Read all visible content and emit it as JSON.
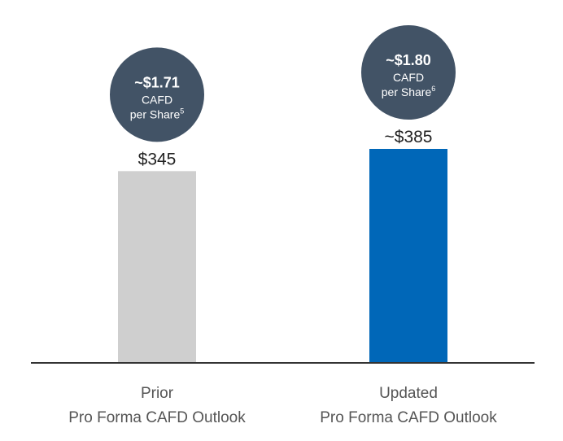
{
  "chart_data": {
    "type": "bar",
    "categories": [
      [
        "Prior",
        "Pro Forma CAFD Outlook"
      ],
      [
        "Updated",
        "Pro Forma CAFD Outlook"
      ]
    ],
    "values": [
      345,
      385
    ],
    "value_labels": [
      "$345",
      "~$385"
    ],
    "bar_colors": [
      "#cfcfcf",
      "#0067b8"
    ],
    "ylim": [
      0,
      420
    ],
    "grid": false,
    "axis_color": "#333333",
    "label_color": "#222222",
    "annotations": [
      {
        "bar": 0,
        "lines": [
          "~$1.71",
          "CAFD",
          "per Share"
        ],
        "superscript": "5",
        "color": "#425366"
      },
      {
        "bar": 1,
        "lines": [
          "~$1.80",
          "CAFD",
          "per Share"
        ],
        "superscript": "6",
        "color": "#425366"
      }
    ]
  }
}
